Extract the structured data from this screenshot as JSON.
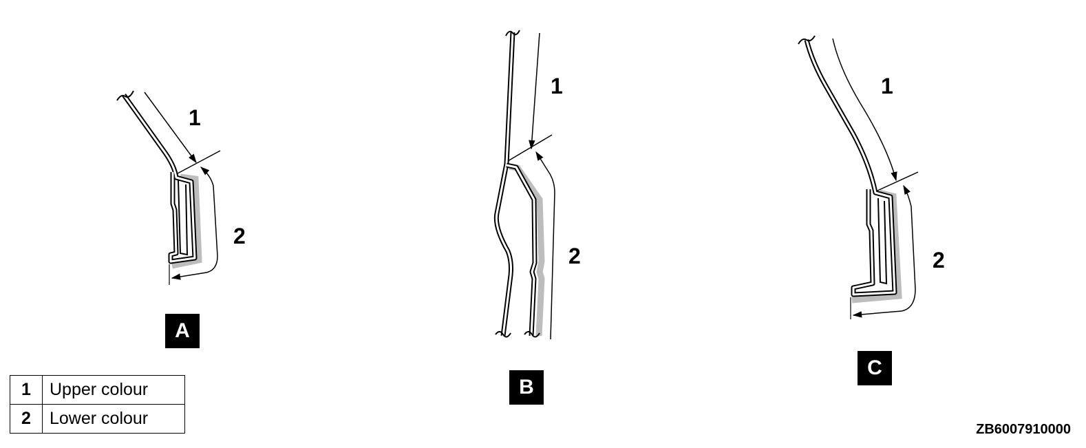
{
  "views": [
    {
      "id": "A",
      "label": "A",
      "callout_1": "1",
      "callout_2": "2"
    },
    {
      "id": "B",
      "label": "B",
      "callout_1": "1",
      "callout_2": "2"
    },
    {
      "id": "C",
      "label": "C",
      "callout_1": "1",
      "callout_2": "2"
    }
  ],
  "legend": [
    {
      "key": "1",
      "text": "Upper colour"
    },
    {
      "key": "2",
      "text": "Lower colour"
    }
  ],
  "reference_code": "ZB6007910000",
  "colors": {
    "line": "#000000",
    "lower_band": "#bdbdbd",
    "label_box": "#000000"
  }
}
